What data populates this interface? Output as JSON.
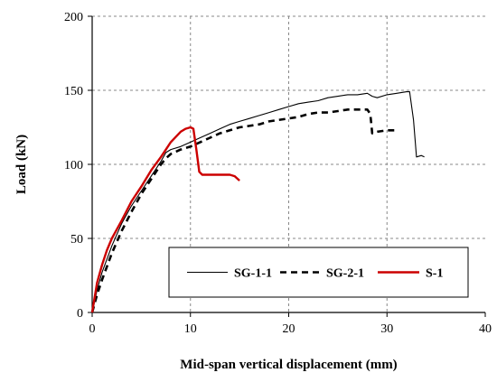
{
  "chart_data": {
    "type": "line",
    "title": "",
    "xlabel": "Mid-span vertical displacement (mm)",
    "ylabel": "Load (kN)",
    "xlim": [
      0,
      40
    ],
    "ylim": [
      0,
      200
    ],
    "xticks": [
      "0",
      "10",
      "20",
      "30",
      "40"
    ],
    "yticks": [
      "0",
      "50",
      "100",
      "150",
      "200"
    ],
    "grid": true,
    "legend_position": "lower-right",
    "series": [
      {
        "name": "SG-1-1",
        "color": "#000000",
        "style": "solid-thin",
        "x": [
          0,
          0.5,
          1,
          2,
          3,
          4,
          5,
          6,
          7,
          7.5,
          8,
          9,
          10,
          11,
          12,
          13,
          14,
          15,
          16,
          17,
          18,
          19,
          20,
          21,
          22,
          23,
          24,
          25,
          26,
          27,
          28,
          28.5,
          29,
          30,
          31,
          32,
          32.3,
          32.7,
          33,
          33.5,
          33.8
        ],
        "y": [
          0,
          15,
          27,
          45,
          60,
          72,
          82,
          92,
          102,
          108,
          110,
          112,
          115,
          118,
          121,
          124,
          127,
          129,
          131,
          133,
          135,
          137,
          139,
          141,
          142,
          143,
          145,
          146,
          147,
          147,
          148,
          146,
          145,
          147,
          148,
          149,
          149,
          130,
          105,
          106,
          105
        ]
      },
      {
        "name": "SG-2-1",
        "color": "#000000",
        "style": "dashed-thick",
        "x": [
          0,
          0.5,
          1,
          2,
          3,
          4,
          5,
          6,
          7,
          7.5,
          8,
          9,
          10,
          11,
          12,
          13,
          14,
          15,
          16,
          17,
          18,
          19,
          20,
          21,
          22,
          23,
          24,
          25,
          26,
          27,
          28,
          28.3,
          28.5,
          29,
          30,
          31
        ],
        "y": [
          0,
          12,
          22,
          40,
          55,
          68,
          80,
          90,
          100,
          104,
          107,
          110,
          112,
          115,
          118,
          121,
          123,
          125,
          126,
          127,
          129,
          130,
          131,
          132,
          134,
          135,
          135,
          136,
          137,
          137,
          137,
          134,
          121,
          122,
          123,
          123
        ]
      },
      {
        "name": "S-1",
        "color": "#cc0000",
        "style": "solid-thick",
        "x": [
          0,
          0.5,
          1,
          1.5,
          2,
          3,
          4,
          5,
          6,
          7,
          7.5,
          8,
          9,
          9.5,
          10,
          10.3,
          10.6,
          10.9,
          11.2,
          12,
          13,
          14,
          14.5,
          15
        ],
        "y": [
          0,
          20,
          32,
          42,
          50,
          62,
          75,
          85,
          96,
          105,
          110,
          115,
          122,
          124,
          125,
          124,
          110,
          95,
          93,
          93,
          93,
          93,
          92,
          89
        ]
      }
    ]
  }
}
